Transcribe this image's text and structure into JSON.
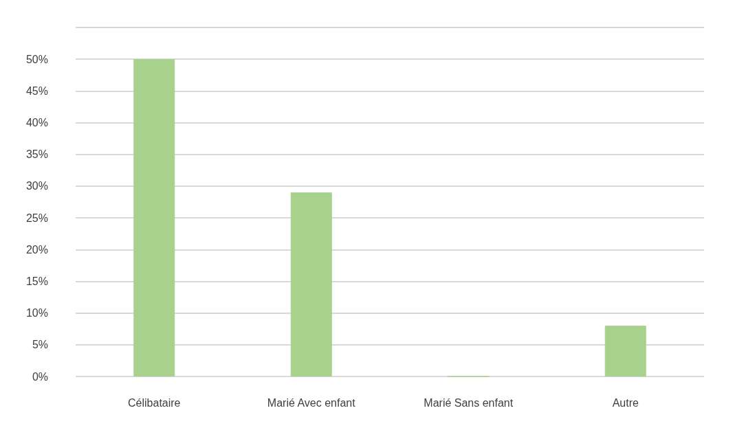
{
  "chart_data": {
    "type": "bar",
    "categories": [
      "Célibataire",
      "Marié Avec enfant",
      "Marié Sans enfant",
      "Autre"
    ],
    "values": [
      50,
      29,
      0,
      8
    ],
    "color": "#a9d18e",
    "ylim": [
      0,
      55
    ],
    "yticks": [
      {
        "value": 0,
        "label": "0%"
      },
      {
        "value": 5,
        "label": "5%"
      },
      {
        "value": 10,
        "label": "10%"
      },
      {
        "value": 15,
        "label": "15%"
      },
      {
        "value": 20,
        "label": "20%"
      },
      {
        "value": 25,
        "label": "25%"
      },
      {
        "value": 30,
        "label": "30%"
      },
      {
        "value": 35,
        "label": "35%"
      },
      {
        "value": 40,
        "label": "40%"
      },
      {
        "value": 45,
        "label": "45%"
      },
      {
        "value": 50,
        "label": "50%"
      },
      {
        "value": 55,
        "label": null
      }
    ],
    "grid": "y"
  }
}
